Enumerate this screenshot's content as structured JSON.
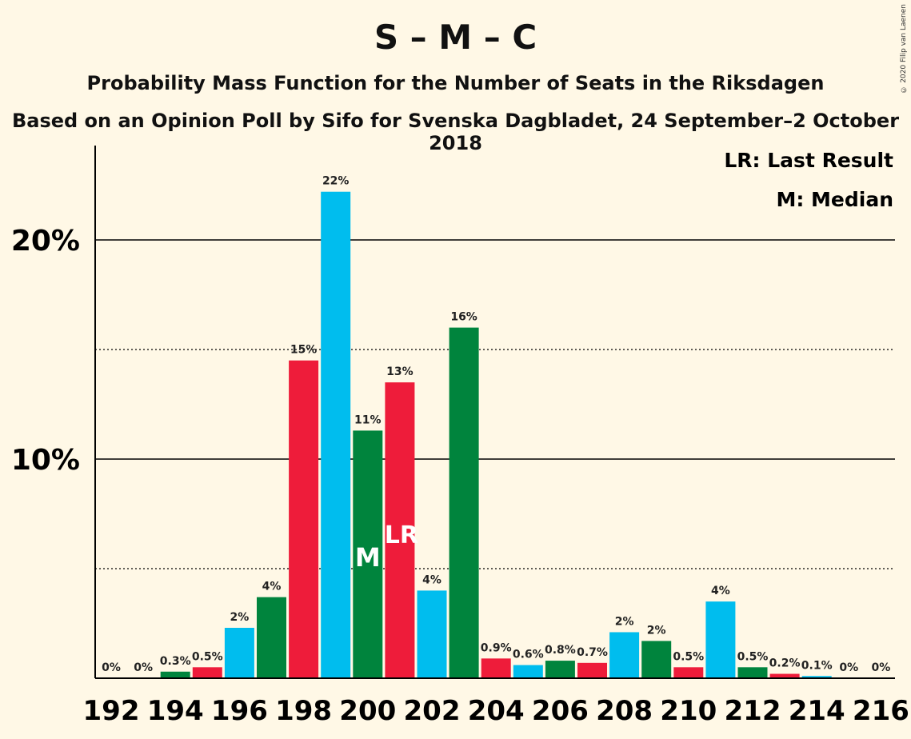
{
  "header": {
    "title": "S – M – C",
    "subtitle": "Probability Mass Function for the Number of Seats in the Riksdagen",
    "subtitle2": "Based on an Opinion Poll by Sifo for Svenska Dagbladet, 24 September–2 October 2018",
    "copyright": "© 2020 Filip van Laenen"
  },
  "legend": {
    "last_result": "LR: Last Result",
    "median": "M: Median"
  },
  "colors": {
    "red": "#ee1c3a",
    "blue": "#00bdee",
    "green": "#00843d",
    "background": "#fff8e6"
  },
  "chart_data": {
    "type": "bar",
    "x": [
      192,
      193,
      194,
      195,
      196,
      197,
      198,
      199,
      200,
      201,
      202,
      203,
      204,
      205,
      206,
      207,
      208,
      209,
      210,
      211,
      212,
      213,
      214,
      215,
      216
    ],
    "values": [
      0,
      0,
      0.3,
      0.5,
      2.3,
      3.7,
      14.5,
      22.2,
      11.3,
      13.5,
      4.0,
      16.0,
      0.9,
      0.6,
      0.8,
      0.7,
      2.1,
      1.7,
      0.5,
      3.5,
      0.5,
      0.2,
      0.1,
      0,
      0
    ],
    "labels": [
      "0%",
      "0%",
      "0.3%",
      "0.5%",
      "2%",
      "4%",
      "15%",
      "22%",
      "11%",
      "13%",
      "4%",
      "16%",
      "0.9%",
      "0.6%",
      "0.8%",
      "0.7%",
      "2%",
      "2%",
      "0.5%",
      "4%",
      "0.5%",
      "0.2%",
      "0.1%",
      "0%",
      "0%"
    ],
    "bar_colors": [
      "red",
      "blue",
      "green",
      "red",
      "blue",
      "green",
      "red",
      "blue",
      "green",
      "red",
      "blue",
      "green",
      "red",
      "blue",
      "green",
      "red",
      "blue",
      "green",
      "red",
      "blue",
      "green",
      "red",
      "blue",
      "green",
      "red"
    ],
    "xticks": [
      "192",
      "194",
      "196",
      "198",
      "200",
      "202",
      "204",
      "206",
      "208",
      "210",
      "212",
      "214",
      "216"
    ],
    "yticks": [
      {
        "value": 10,
        "label": "10%"
      },
      {
        "value": 20,
        "label": "20%"
      }
    ],
    "ylim": [
      0,
      24
    ],
    "median_seat": 200,
    "median_marker": "M",
    "last_result_seat": 201,
    "last_result_marker": "LR"
  }
}
